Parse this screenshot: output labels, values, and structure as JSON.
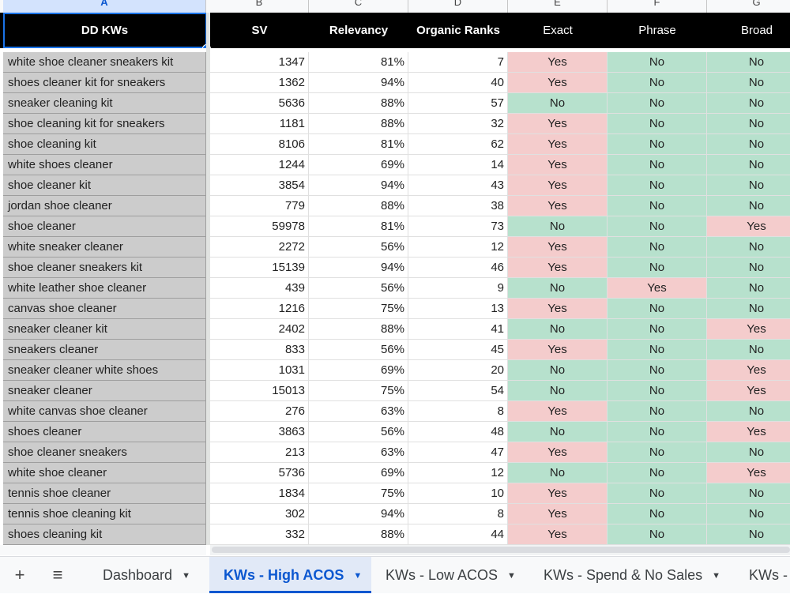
{
  "column_letters": [
    "A",
    "B",
    "C",
    "D",
    "E",
    "F",
    "G"
  ],
  "headers": {
    "kw": "DD KWs",
    "sv": "SV",
    "relevancy": "Relevancy",
    "organic": "Organic Ranks",
    "exact": "Exact",
    "phrase": "Phrase",
    "broad": "Broad"
  },
  "rows": [
    [
      "white shoe cleaner sneakers kit",
      "1347",
      "81%",
      "7",
      "Yes",
      "No",
      "No"
    ],
    [
      "shoes cleaner kit for sneakers",
      "1362",
      "94%",
      "40",
      "Yes",
      "No",
      "No"
    ],
    [
      "sneaker cleaning kit",
      "5636",
      "88%",
      "57",
      "No",
      "No",
      "No"
    ],
    [
      "shoe cleaning kit for sneakers",
      "1181",
      "88%",
      "32",
      "Yes",
      "No",
      "No"
    ],
    [
      "shoe cleaning kit",
      "8106",
      "81%",
      "62",
      "Yes",
      "No",
      "No"
    ],
    [
      "white shoes cleaner",
      "1244",
      "69%",
      "14",
      "Yes",
      "No",
      "No"
    ],
    [
      "shoe cleaner kit",
      "3854",
      "94%",
      "43",
      "Yes",
      "No",
      "No"
    ],
    [
      "jordan shoe cleaner",
      "779",
      "88%",
      "38",
      "Yes",
      "No",
      "No"
    ],
    [
      "shoe cleaner",
      "59978",
      "81%",
      "73",
      "No",
      "No",
      "Yes"
    ],
    [
      "white sneaker cleaner",
      "2272",
      "56%",
      "12",
      "Yes",
      "No",
      "No"
    ],
    [
      "shoe cleaner sneakers kit",
      "15139",
      "94%",
      "46",
      "Yes",
      "No",
      "No"
    ],
    [
      "white leather shoe cleaner",
      "439",
      "56%",
      "9",
      "No",
      "Yes",
      "No"
    ],
    [
      "canvas shoe cleaner",
      "1216",
      "75%",
      "13",
      "Yes",
      "No",
      "No"
    ],
    [
      "sneaker cleaner kit",
      "2402",
      "88%",
      "41",
      "No",
      "No",
      "Yes"
    ],
    [
      "sneakers cleaner",
      "833",
      "56%",
      "45",
      "Yes",
      "No",
      "No"
    ],
    [
      "sneaker cleaner white shoes",
      "1031",
      "69%",
      "20",
      "No",
      "No",
      "Yes"
    ],
    [
      "sneaker cleaner",
      "15013",
      "75%",
      "54",
      "No",
      "No",
      "Yes"
    ],
    [
      "white canvas shoe cleaner",
      "276",
      "63%",
      "8",
      "Yes",
      "No",
      "No"
    ],
    [
      "shoes cleaner",
      "3863",
      "56%",
      "48",
      "No",
      "No",
      "Yes"
    ],
    [
      "shoe cleaner sneakers",
      "213",
      "63%",
      "47",
      "Yes",
      "No",
      "No"
    ],
    [
      "white shoe cleaner",
      "5736",
      "69%",
      "12",
      "No",
      "No",
      "Yes"
    ],
    [
      "tennis shoe cleaner",
      "1834",
      "75%",
      "10",
      "Yes",
      "No",
      "No"
    ],
    [
      "tennis shoe cleaning kit",
      "302",
      "94%",
      "8",
      "Yes",
      "No",
      "No"
    ],
    [
      "shoes cleaning kit",
      "332",
      "88%",
      "44",
      "Yes",
      "No",
      "No"
    ]
  ],
  "tabs": [
    {
      "label": "Dashboard",
      "active": false
    },
    {
      "label": "KWs - High ACOS",
      "active": true
    },
    {
      "label": "KWs - Low ACOS",
      "active": false
    },
    {
      "label": "KWs - Spend & No Sales",
      "active": false
    },
    {
      "label": "KWs -",
      "active": false
    }
  ],
  "toolbar": {
    "add_sheet_icon": "+",
    "all_sheets_icon": "≡"
  },
  "colors": {
    "yes": "#f4cccc",
    "no": "#b7e1cd",
    "header": "#000000",
    "keyword_bg": "#cccccc",
    "active_tab": "#0b57d0"
  }
}
